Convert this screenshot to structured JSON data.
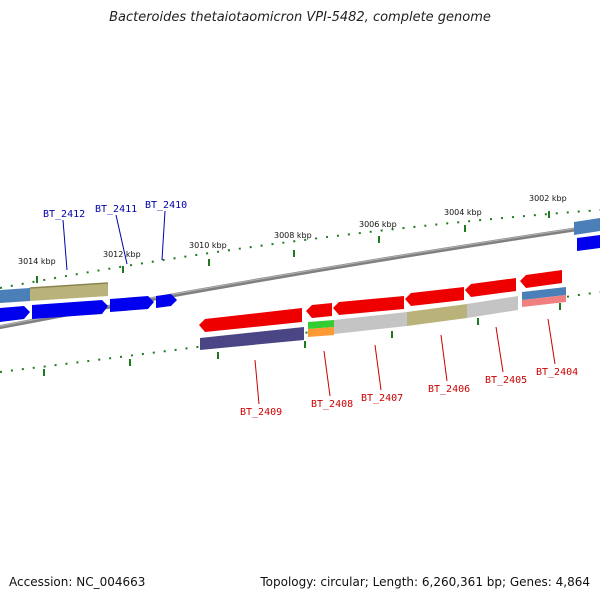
{
  "title": "Bacteroides thetaiotaomicron VPI-5482, complete genome",
  "footer": {
    "accession": "Accession: NC_004663",
    "summary": "Topology: circular; Length: 6,260,361 bp; Genes: 4,864"
  },
  "scale_labels": [
    "3014 kbp",
    "3012 kbp",
    "3010 kbp",
    "3008 kbp",
    "3006 kbp",
    "3004 kbp",
    "3002 kbp"
  ],
  "colors": {
    "forward_gene": "#0000ee",
    "reverse_gene": "#ee0000",
    "forward_label": "#0000aa",
    "reverse_label": "#cc0000",
    "backbone": "#7a7a7a",
    "ticks": "#1f7a1f"
  },
  "genes_forward": [
    {
      "label": "BT_2412"
    },
    {
      "label": "BT_2411"
    },
    {
      "label": "BT_2410"
    }
  ],
  "genes_reverse": [
    {
      "label": "BT_2409"
    },
    {
      "label": "BT_2408"
    },
    {
      "label": "BT_2407"
    },
    {
      "label": "BT_2406"
    },
    {
      "label": "BT_2405"
    },
    {
      "label": "BT_2404"
    }
  ]
}
